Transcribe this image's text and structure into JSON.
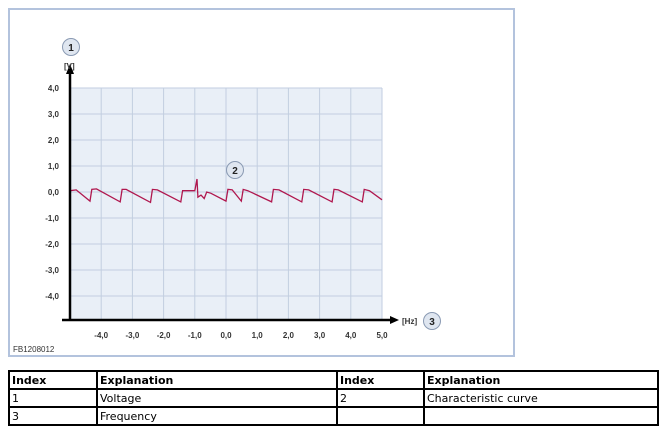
{
  "chart_data": {
    "type": "line",
    "xlabel": "[Hz]",
    "ylabel": "[V]",
    "xlim": [
      -5,
      5
    ],
    "ylim": [
      -5,
      4
    ],
    "xticks": [
      "-4,0",
      "-3,0",
      "-2,0",
      "-1,0",
      "0,0",
      "1,0",
      "2,0",
      "3,0",
      "4,0",
      "5,0"
    ],
    "xtick_values": [
      -4,
      -3,
      -2,
      -1,
      0,
      1,
      2,
      3,
      4,
      5
    ],
    "yticks": [
      "4,0",
      "3,0",
      "2,0",
      "1,0",
      "0,0",
      "-1,0",
      "-2,0",
      "-3,0",
      "-4,0"
    ],
    "ytick_values": [
      4,
      3,
      2,
      1,
      0,
      -1,
      -2,
      -3,
      -4
    ],
    "grid": true,
    "plot_background": "#e9eff7",
    "series": [
      {
        "color": "#b0174e",
        "points": [
          [
            -5,
            0.05
          ],
          [
            -4.8,
            0.08
          ],
          [
            -4.36,
            -0.35
          ],
          [
            -4.3,
            0.1
          ],
          [
            -4.15,
            0.12
          ],
          [
            -3.39,
            -0.38
          ],
          [
            -3.33,
            0.1
          ],
          [
            -3.2,
            0.1
          ],
          [
            -2.42,
            -0.4
          ],
          [
            -2.36,
            0.1
          ],
          [
            -2.2,
            0.08
          ],
          [
            -1.45,
            -0.38
          ],
          [
            -1.39,
            0.05
          ],
          [
            -1.0,
            0.05
          ],
          [
            -0.93,
            0.5
          ],
          [
            -0.9,
            -0.2
          ],
          [
            -0.8,
            -0.12
          ],
          [
            -0.7,
            -0.25
          ],
          [
            -0.62,
            0.0
          ],
          [
            -0.48,
            -0.05
          ],
          [
            0.0,
            -0.35
          ],
          [
            0.06,
            0.1
          ],
          [
            0.2,
            0.08
          ],
          [
            0.49,
            -0.35
          ],
          [
            0.55,
            0.1
          ],
          [
            0.7,
            0.05
          ],
          [
            1.46,
            -0.38
          ],
          [
            1.52,
            0.1
          ],
          [
            1.7,
            0.08
          ],
          [
            2.43,
            -0.38
          ],
          [
            2.49,
            0.1
          ],
          [
            2.65,
            0.08
          ],
          [
            3.4,
            -0.38
          ],
          [
            3.46,
            0.1
          ],
          [
            3.6,
            0.08
          ],
          [
            4.37,
            -0.38
          ],
          [
            4.43,
            0.1
          ],
          [
            4.6,
            0.05
          ],
          [
            5,
            -0.3
          ]
        ]
      }
    ]
  },
  "callouts": [
    "1",
    "2",
    "3"
  ],
  "figure_id": "FB1208012",
  "legend_table": {
    "headers": [
      "Index",
      "Explanation",
      "Index",
      "Explanation"
    ],
    "rows": [
      [
        "1",
        "Voltage",
        "2",
        "Characteristic curve"
      ],
      [
        "3",
        "Frequency",
        "",
        ""
      ]
    ]
  }
}
